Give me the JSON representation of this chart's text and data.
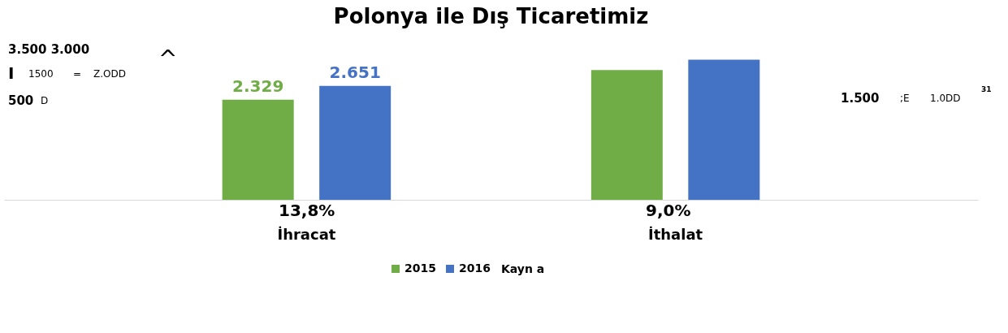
{
  "chart_data": {
    "type": "bar",
    "title": "Polonya ile Dış Ticaretimiz",
    "categories": [
      "İhracat",
      "İthalat"
    ],
    "series": [
      {
        "name": "2015",
        "color": "#70ad47",
        "values": [
          2329,
          3020
        ],
        "value_labels": [
          "2.329",
          null
        ]
      },
      {
        "name": "2016",
        "color": "#4472c4",
        "values": [
          2651,
          3260
        ],
        "value_labels": [
          "2.651",
          null
        ]
      }
    ],
    "annotations": [
      "13,8%",
      "9,0%",
      "3.500 3.000",
      "I",
      "1500",
      "=",
      "Z.ODD",
      "^",
      "500",
      "D",
      "1.500",
      ";E",
      "1.0DD",
      "31",
      "Kayn a"
    ],
    "legend": "bottom"
  }
}
